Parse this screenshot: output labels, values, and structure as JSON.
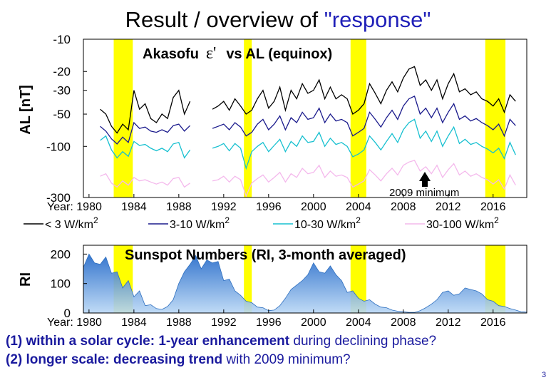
{
  "slide": {
    "title_prefix": "Result / overview of ",
    "title_quoted": "\"response\"",
    "page_number": "3",
    "notes": [
      {
        "bold": "(1) within a solar cycle: 1-year enhancement",
        "rest": " during declining phase?"
      },
      {
        "bold": "(2) longer scale: decreasing trend",
        "rest": " with 2009 minimum?"
      }
    ]
  },
  "chart_data": [
    {
      "id": "al",
      "type": "line",
      "title_left": "Akasofu",
      "title_symbol": "ε'",
      "title_right": "vs  AL (equinox)",
      "ylabel": "AL [nT]",
      "y_scale": "log (magnitude)",
      "ylim": [
        -300,
        -10
      ],
      "xlim": [
        1979.5,
        2019
      ],
      "yticks": [
        -10,
        -20,
        -30,
        -50,
        -100,
        -300
      ],
      "ytick_labels": [
        "-10",
        "-20",
        "-30",
        "-50",
        "-100",
        "-300"
      ],
      "xticks": [
        1980,
        1984,
        1988,
        1992,
        1996,
        2000,
        2004,
        2008,
        2012,
        2016
      ],
      "xtick_labels": [
        "Year: 1980",
        "1984",
        "1988",
        "1992",
        "1996",
        "2000",
        "2004",
        "2008",
        "2012",
        "2016"
      ],
      "highlight_bands": [
        [
          1982.2,
          1983.9
        ],
        [
          1993.8,
          1994.5
        ],
        [
          2003.3,
          2004.7
        ],
        [
          2015.3,
          2017.1
        ]
      ],
      "annotation": {
        "text": "2009 minimum",
        "x": 2009,
        "y": -235
      },
      "series": [
        {
          "name": "< 3 W/km",
          "sup": "2",
          "color": "#000000",
          "x": [
            1981,
            1981.5,
            1982,
            1982.5,
            1983,
            1983.5,
            1984,
            1984.5,
            1985,
            1985.5,
            1986,
            1986.5,
            1987,
            1987.5,
            1988,
            1988.5,
            1989,
            null,
            1991,
            1991.5,
            1992,
            1992.5,
            1993,
            1993.5,
            1994,
            1994.5,
            1995,
            1995.5,
            1996,
            1996.5,
            1997,
            1997.5,
            1998,
            1998.5,
            1999,
            1999.5,
            2000,
            2000.5,
            2001,
            2001.5,
            2002,
            2002.5,
            2003,
            2003.5,
            2004,
            2004.5,
            2005,
            2005.5,
            2006,
            2006.5,
            2007,
            2007.5,
            2008,
            2008.5,
            2009,
            2009.5,
            2010,
            2010.5,
            2011,
            2011.5,
            2012,
            2012.5,
            2013,
            2013.5,
            2014,
            2014.5,
            2015,
            2015.5,
            2016,
            2016.5,
            2017,
            2017.5,
            2018
          ],
          "y": [
            -45,
            -50,
            -65,
            -75,
            -62,
            -70,
            -30,
            -45,
            -40,
            -55,
            -60,
            -50,
            -55,
            -35,
            -30,
            -50,
            -38,
            null,
            -45,
            -42,
            -38,
            -46,
            -36,
            -42,
            -50,
            -46,
            -36,
            -30,
            -44,
            -38,
            -28,
            -46,
            -30,
            -36,
            -26,
            -32,
            -30,
            -24,
            -36,
            -28,
            -36,
            -33,
            -36,
            -50,
            -46,
            -40,
            -26,
            -32,
            -40,
            -30,
            -25,
            -31,
            -23,
            -19,
            -18,
            -27,
            -24,
            -30,
            -24,
            -36,
            -26,
            -21,
            -31,
            -29,
            -33,
            -31,
            -36,
            -38,
            -42,
            -36,
            -48,
            -33,
            -38
          ]
        },
        {
          "name": "3-10 W/km",
          "sup": "2",
          "color": "#1a1a8c",
          "x": [
            1981,
            1981.5,
            1982,
            1982.5,
            1983,
            1983.5,
            1984,
            1984.5,
            1985,
            1985.5,
            1986,
            1986.5,
            1987,
            1987.5,
            1988,
            1988.5,
            1989,
            null,
            1991,
            1991.5,
            1992,
            1992.5,
            1993,
            1993.5,
            1994,
            1994.5,
            1995,
            1995.5,
            1996,
            1996.5,
            1997,
            1997.5,
            1998,
            1998.5,
            1999,
            1999.5,
            2000,
            2000.5,
            2001,
            2001.5,
            2002,
            2002.5,
            2003,
            2003.5,
            2004,
            2004.5,
            2005,
            2005.5,
            2006,
            2006.5,
            2007,
            2007.5,
            2008,
            2008.5,
            2009,
            2009.5,
            2010,
            2010.5,
            2011,
            2011.5,
            2012,
            2012.5,
            2013,
            2013.5,
            2014,
            2014.5,
            2015,
            2015.5,
            2016,
            2016.5,
            2017,
            2017.5,
            2018
          ],
          "y": [
            -65,
            -72,
            -85,
            -95,
            -82,
            -92,
            -60,
            -68,
            -66,
            -72,
            -74,
            -70,
            -74,
            -64,
            -62,
            -72,
            -64,
            null,
            -68,
            -65,
            -62,
            -70,
            -60,
            -66,
            -80,
            -74,
            -62,
            -56,
            -70,
            -62,
            -52,
            -70,
            -54,
            -60,
            -48,
            -56,
            -54,
            -44,
            -60,
            -50,
            -58,
            -56,
            -60,
            -80,
            -74,
            -68,
            -48,
            -56,
            -66,
            -54,
            -46,
            -56,
            -42,
            -36,
            -34,
            -50,
            -44,
            -54,
            -44,
            -60,
            -48,
            -40,
            -56,
            -52,
            -58,
            -55,
            -60,
            -64,
            -70,
            -62,
            -80,
            -56,
            -64
          ]
        },
        {
          "name": "10-30 W/km",
          "sup": "2",
          "color": "#17c0d0",
          "x": [
            1981,
            1981.5,
            1982,
            1982.5,
            1983,
            1983.5,
            1984,
            1984.5,
            1985,
            1985.5,
            1986,
            1986.5,
            1987,
            1987.5,
            1988,
            1988.5,
            1989,
            null,
            1991,
            1991.5,
            1992,
            1992.5,
            1993,
            1993.5,
            1994,
            1994.5,
            1995,
            1995.5,
            1996,
            1996.5,
            1997,
            1997.5,
            1998,
            1998.5,
            1999,
            1999.5,
            2000,
            2000.5,
            2001,
            2001.5,
            2002,
            2002.5,
            2003,
            2003.5,
            2004,
            2004.5,
            2005,
            2005.5,
            2006,
            2006.5,
            2007,
            2007.5,
            2008,
            2008.5,
            2009,
            2009.5,
            2010,
            2010.5,
            2011,
            2011.5,
            2012,
            2012.5,
            2013,
            2013.5,
            2014,
            2014.5,
            2015,
            2015.5,
            2016,
            2016.5,
            2017,
            2017.5,
            2018
          ],
          "y": [
            -88,
            -80,
            -108,
            -128,
            -112,
            -124,
            -90,
            -98,
            -96,
            -104,
            -110,
            -104,
            -112,
            -95,
            -92,
            -128,
            -108,
            null,
            -104,
            -100,
            -94,
            -110,
            -94,
            -104,
            -160,
            -112,
            -100,
            -92,
            -112,
            -98,
            -86,
            -112,
            -90,
            -100,
            -80,
            -92,
            -90,
            -74,
            -100,
            -84,
            -96,
            -92,
            -100,
            -125,
            -118,
            -108,
            -80,
            -92,
            -108,
            -90,
            -76,
            -92,
            -70,
            -60,
            -56,
            -84,
            -72,
            -90,
            -72,
            -100,
            -80,
            -66,
            -94,
            -86,
            -96,
            -92,
            -100,
            -106,
            -115,
            -104,
            -130,
            -92,
            -120
          ]
        },
        {
          "name": "30-100 W/km",
          "sup": "2",
          "color": "#f4b8ec",
          "x": [
            1981,
            1981.5,
            1982,
            1982.5,
            1983,
            1983.5,
            1984,
            1984.5,
            1985,
            1985.5,
            1986,
            1986.5,
            1987,
            1987.5,
            1988,
            1988.5,
            1989,
            null,
            1991,
            1991.5,
            1992,
            1992.5,
            1993,
            1993.5,
            1994,
            1994.5,
            1995,
            1995.5,
            1996,
            1996.5,
            1997,
            1997.5,
            1998,
            1998.5,
            1999,
            1999.5,
            2000,
            2000.5,
            2001,
            2001.5,
            2002,
            2002.5,
            2003,
            2003.5,
            2004,
            2004.5,
            2005,
            2005.5,
            2006,
            2006.5,
            2007,
            2007.5,
            2008,
            2008.5,
            2009,
            2009.5,
            2010,
            2010.5,
            2011,
            2011.5,
            2012,
            2012.5,
            2013,
            2013.5,
            2014,
            2014.5,
            2015,
            2015.5,
            2016,
            2016.5,
            2017,
            2017.5,
            2018
          ],
          "y": [
            -190,
            -180,
            -220,
            -240,
            -210,
            -230,
            -195,
            -210,
            -205,
            -215,
            -225,
            -215,
            -230,
            -200,
            -195,
            -240,
            -220,
            null,
            -210,
            -205,
            -190,
            -215,
            -190,
            -205,
            -290,
            -220,
            -200,
            -185,
            -215,
            -195,
            -175,
            -215,
            -180,
            -195,
            -160,
            -180,
            -175,
            -150,
            -195,
            -170,
            -190,
            -185,
            -195,
            -240,
            -225,
            -210,
            -165,
            -185,
            -210,
            -180,
            -160,
            -185,
            -150,
            -140,
            -135,
            -170,
            -155,
            -180,
            -150,
            -195,
            -165,
            -145,
            -185,
            -170,
            -190,
            -180,
            -195,
            -205,
            -225,
            -205,
            -250,
            -185,
            -230
          ]
        }
      ]
    },
    {
      "id": "ri",
      "type": "area",
      "title": "Sunspot Numbers (RI, 3-month averaged)",
      "ylabel": "RI",
      "ylim": [
        0,
        230
      ],
      "xlim": [
        1979.5,
        2019
      ],
      "yticks": [
        0,
        100,
        200
      ],
      "ytick_labels": [
        "0",
        "100",
        "200"
      ],
      "xticks": [
        1980,
        1984,
        1988,
        1992,
        1996,
        2000,
        2004,
        2008,
        2012,
        2016
      ],
      "xtick_labels": [
        "Year: 1980",
        "1984",
        "1988",
        "1992",
        "1996",
        "2000",
        "2004",
        "2008",
        "2012",
        "2016"
      ],
      "highlight_bands": [
        [
          1982.2,
          1983.9
        ],
        [
          1993.8,
          1994.5
        ],
        [
          2003.3,
          2004.7
        ],
        [
          2015.3,
          2017.1
        ]
      ],
      "series": [
        {
          "name": "RI",
          "color": "#4a90d9",
          "x": [
            1979.5,
            1980,
            1980.5,
            1981,
            1981.5,
            1982,
            1982.5,
            1983,
            1983.5,
            1984,
            1984.5,
            1985,
            1985.5,
            1986,
            1986.5,
            1987,
            1987.5,
            1988,
            1988.5,
            1989,
            1989.5,
            1990,
            1990.5,
            1991,
            1991.5,
            1992,
            1992.5,
            1993,
            1993.5,
            1994,
            1994.5,
            1995,
            1995.5,
            1996,
            1996.5,
            1997,
            1997.5,
            1998,
            1998.5,
            1999,
            1999.5,
            2000,
            2000.5,
            2001,
            2001.5,
            2002,
            2002.5,
            2003,
            2003.5,
            2004,
            2004.5,
            2005,
            2005.5,
            2006,
            2006.5,
            2007,
            2007.5,
            2008,
            2008.5,
            2009,
            2009.5,
            2010,
            2010.5,
            2011,
            2011.5,
            2012,
            2012.5,
            2013,
            2013.5,
            2014,
            2014.5,
            2015,
            2015.5,
            2016,
            2016.5,
            2017,
            2017.5,
            2018,
            2018.5,
            2019
          ],
          "y": [
            155,
            200,
            170,
            165,
            190,
            135,
            140,
            85,
            110,
            55,
            75,
            25,
            28,
            15,
            12,
            22,
            45,
            100,
            140,
            165,
            195,
            150,
            180,
            170,
            175,
            110,
            115,
            75,
            60,
            40,
            35,
            20,
            18,
            8,
            10,
            25,
            50,
            80,
            95,
            110,
            130,
            170,
            140,
            135,
            160,
            130,
            110,
            70,
            75,
            50,
            40,
            45,
            30,
            20,
            18,
            10,
            6,
            4,
            2,
            2,
            8,
            18,
            30,
            45,
            70,
            75,
            60,
            65,
            85,
            80,
            75,
            65,
            45,
            40,
            25,
            22,
            15,
            10,
            4,
            3
          ]
        }
      ]
    }
  ]
}
